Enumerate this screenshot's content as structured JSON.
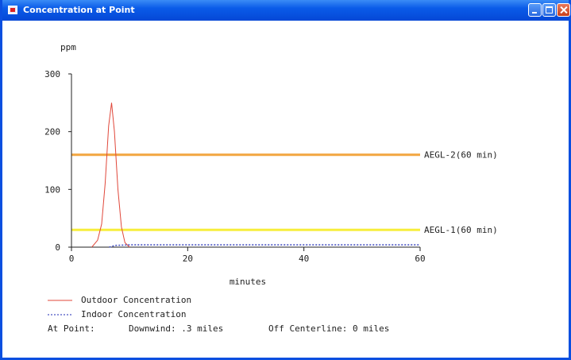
{
  "window": {
    "title": "Concentration at Point",
    "buttons": {
      "minimize": "minimize",
      "maximize": "maximize",
      "close": "close"
    }
  },
  "chart_data": {
    "type": "line",
    "ylabel": "ppm",
    "xlabel": "minutes",
    "xlim": [
      0,
      60
    ],
    "ylim": [
      0,
      300
    ],
    "x_ticks": [
      0,
      20,
      40,
      60
    ],
    "y_ticks": [
      0,
      100,
      200,
      300
    ],
    "grid": false,
    "series": [
      {
        "name": "Outdoor Concentration",
        "color": "#e0473a",
        "style": "solid",
        "points": [
          [
            3.5,
            0
          ],
          [
            4.5,
            12
          ],
          [
            5.2,
            40
          ],
          [
            5.8,
            110
          ],
          [
            6.4,
            210
          ],
          [
            6.9,
            250
          ],
          [
            7.4,
            200
          ],
          [
            8,
            100
          ],
          [
            8.6,
            35
          ],
          [
            9.2,
            8
          ],
          [
            10,
            0
          ]
        ]
      },
      {
        "name": "Indoor Concentration",
        "color": "#4a55c4",
        "style": "dotted",
        "points": [
          [
            6.5,
            0
          ],
          [
            7.5,
            3
          ],
          [
            10,
            4
          ],
          [
            20,
            4
          ],
          [
            40,
            4
          ],
          [
            60,
            4
          ]
        ]
      }
    ],
    "thresholds": [
      {
        "label": "AEGL-2(60 min)",
        "value": 160,
        "color": "#f2a640"
      },
      {
        "label": "AEGL-1(60 min)",
        "value": 30,
        "color": "#f7ee3c"
      }
    ]
  },
  "info": {
    "at_point": "At Point:",
    "downwind": "Downwind: .3 miles",
    "off_centerline": "Off Centerline: 0 miles"
  }
}
